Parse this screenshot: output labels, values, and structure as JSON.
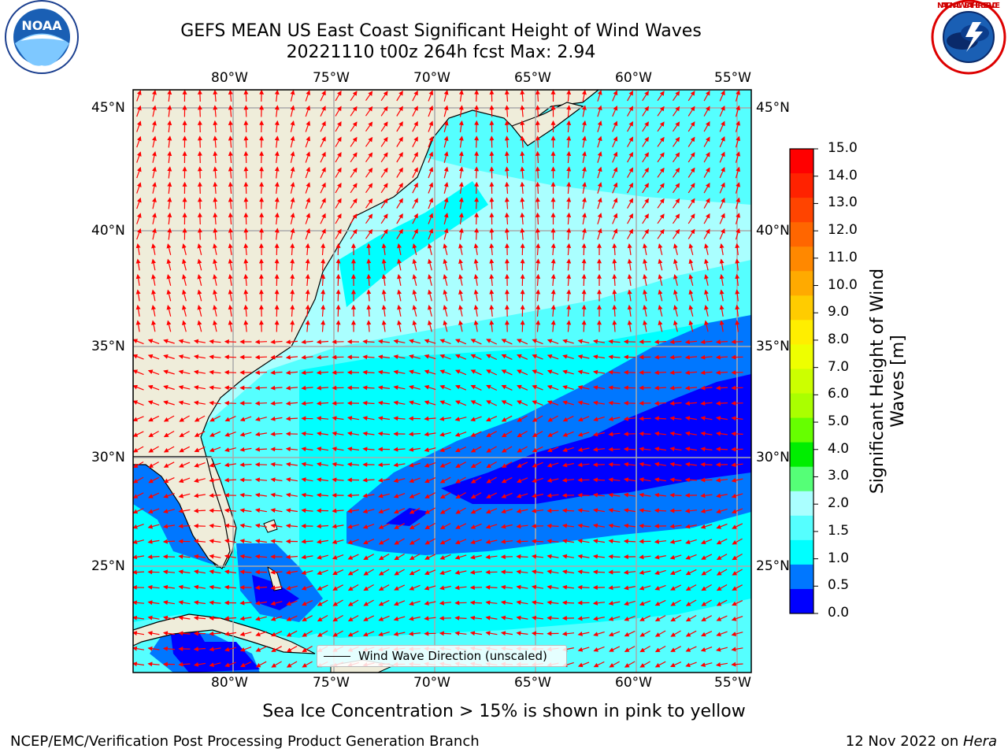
{
  "header": {
    "title_line1": "GEFS MEAN US East Coast Significant Height of Wind Waves",
    "title_line2": "20221110 t00z 264h fcst   Max: 2.94"
  },
  "logos": {
    "left_logo_text": "NOAA",
    "right_logo_text": "NATIONAL WEATHER SERVICE"
  },
  "map": {
    "lon_labels": [
      "80°W",
      "75°W",
      "70°W",
      "65°W",
      "60°W",
      "55°W"
    ],
    "lat_labels": [
      "45°N",
      "40°N",
      "35°N",
      "30°N",
      "25°N"
    ],
    "ocean_colors": {
      "0.0-0.5": "#0000ff",
      "0.5-1.0": "#0077ff",
      "1.0-1.5": "#00ffff",
      "1.5-2.0": "#55ffff",
      "2.0-3.0": "#aaffff"
    },
    "land_color": "#efedda",
    "arrow_color": "#ff0000",
    "legend_label": "Wind Wave Direction (unscaled)"
  },
  "colorbar": {
    "label": "Significant Height of Wind Waves [m]",
    "ticks": [
      "15.0",
      "14.0",
      "13.0",
      "12.0",
      "11.0",
      "10.0",
      "9.0",
      "8.0",
      "7.0",
      "6.0",
      "5.0",
      "4.0",
      "3.0",
      "2.0",
      "1.5",
      "1.0",
      "0.5",
      "0.0"
    ],
    "colors_top_to_bottom": [
      "#ff0000",
      "#ff2200",
      "#ff4400",
      "#ff6600",
      "#ff8800",
      "#ffaa00",
      "#ffcc00",
      "#ffee00",
      "#eeff00",
      "#ccff00",
      "#aaff00",
      "#66ff00",
      "#00ee00",
      "#55ff77",
      "#aaffff",
      "#55ffff",
      "#00ffff",
      "#0077ff",
      "#0000ff"
    ]
  },
  "notes": {
    "ice": "Sea Ice Concentration > 15% is shown in pink to yellow"
  },
  "footer": {
    "left": "NCEP/EMC/Verification Post Processing Product Generation Branch",
    "right_date": "12 Nov 2022 on ",
    "right_machine": "Hera"
  }
}
